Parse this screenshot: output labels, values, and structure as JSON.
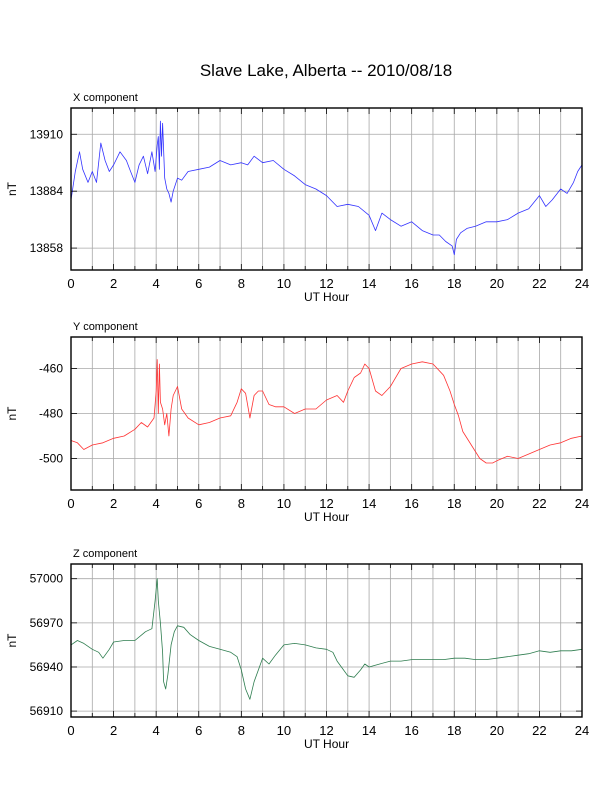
{
  "title": "Slave Lake, Alberta -- 2010/08/18",
  "colors": {
    "x": "#3333ff",
    "y": "#ff3333",
    "z": "#2e7d4f",
    "grid": "#a8a8a8",
    "frame": "#000000"
  },
  "chart_data": [
    {
      "type": "line",
      "panel_label": "X component",
      "xlabel": "UT Hour",
      "ylabel": "nT",
      "xlim": [
        0,
        24
      ],
      "ylim": [
        13848,
        13922
      ],
      "xticks": [
        "0",
        "2",
        "4",
        "6",
        "8",
        "10",
        "12",
        "14",
        "16",
        "18",
        "20",
        "22",
        "24"
      ],
      "yticks": [
        "13858",
        "13884",
        "13910"
      ],
      "ytick_values": [
        13858,
        13884,
        13910
      ],
      "grid": true,
      "series": [
        {
          "color": "#3333ff",
          "x": [
            0,
            0.2,
            0.4,
            0.55,
            0.8,
            1.0,
            1.2,
            1.4,
            1.6,
            1.8,
            2.0,
            2.3,
            2.6,
            2.8,
            3.0,
            3.2,
            3.4,
            3.6,
            3.8,
            3.95,
            4.05,
            4.1,
            4.15,
            4.2,
            4.25,
            4.3,
            4.4,
            4.5,
            4.6,
            4.7,
            4.8,
            5.0,
            5.2,
            5.5,
            6.0,
            6.5,
            7.0,
            7.5,
            8.0,
            8.3,
            8.6,
            9.0,
            9.5,
            10.0,
            10.5,
            11.0,
            11.5,
            12.0,
            12.5,
            13.0,
            13.5,
            14.0,
            14.3,
            14.6,
            15.0,
            15.5,
            16.0,
            16.5,
            17.0,
            17.3,
            17.6,
            17.9,
            18.0,
            18.1,
            18.3,
            18.6,
            19.0,
            19.5,
            20.0,
            20.5,
            21.0,
            21.5,
            22.0,
            22.3,
            22.6,
            23.0,
            23.3,
            23.6,
            23.8,
            24.0
          ],
          "y": [
            13880,
            13893,
            13902,
            13894,
            13888,
            13893,
            13888,
            13906,
            13898,
            13893,
            13896,
            13902,
            13898,
            13893,
            13888,
            13896,
            13900,
            13892,
            13902,
            13893,
            13905,
            13909,
            13894,
            13916,
            13900,
            13915,
            13890,
            13885,
            13883,
            13879,
            13884,
            13890,
            13889,
            13893,
            13894,
            13895,
            13898,
            13896,
            13897,
            13896,
            13900,
            13897,
            13898,
            13894,
            13891,
            13887,
            13885,
            13882,
            13877,
            13878,
            13877,
            13873,
            13866,
            13874,
            13871,
            13868,
            13870,
            13866,
            13864,
            13864,
            13861,
            13859,
            13855,
            13862,
            13865,
            13867,
            13868,
            13870,
            13870,
            13871,
            13874,
            13876,
            13882,
            13877,
            13880,
            13885,
            13883,
            13888,
            13893,
            13896
          ]
        }
      ]
    },
    {
      "type": "line",
      "panel_label": "Y component",
      "xlabel": "UT Hour",
      "ylabel": "nT",
      "xlim": [
        0,
        24
      ],
      "ylim": [
        -514,
        -446
      ],
      "xticks": [
        "0",
        "2",
        "4",
        "6",
        "8",
        "10",
        "12",
        "14",
        "16",
        "18",
        "20",
        "22",
        "24"
      ],
      "yticks": [
        "-460",
        "-480",
        "-500"
      ],
      "ytick_values": [
        -460,
        -480,
        -500
      ],
      "grid": true,
      "series": [
        {
          "color": "#ff3333",
          "x": [
            0,
            0.3,
            0.6,
            1.0,
            1.5,
            2.0,
            2.5,
            3.0,
            3.3,
            3.6,
            3.9,
            4.0,
            4.05,
            4.1,
            4.15,
            4.2,
            4.3,
            4.4,
            4.5,
            4.6,
            4.7,
            4.8,
            5.0,
            5.2,
            5.5,
            6.0,
            6.5,
            7.0,
            7.5,
            7.8,
            8.0,
            8.2,
            8.4,
            8.6,
            8.8,
            9.0,
            9.3,
            9.6,
            10.0,
            10.5,
            11.0,
            11.5,
            12.0,
            12.5,
            12.8,
            13.0,
            13.3,
            13.6,
            13.8,
            14.0,
            14.3,
            14.6,
            15.0,
            15.5,
            16.0,
            16.5,
            17.0,
            17.5,
            17.8,
            18.0,
            18.2,
            18.4,
            18.8,
            19.2,
            19.5,
            19.8,
            20.0,
            20.5,
            21.0,
            21.5,
            22.0,
            22.5,
            23.0,
            23.5,
            24.0
          ],
          "y": [
            -492,
            -493,
            -496,
            -494,
            -493,
            -491,
            -490,
            -487,
            -484,
            -486,
            -482,
            -470,
            -456,
            -480,
            -458,
            -475,
            -478,
            -485,
            -480,
            -490,
            -478,
            -472,
            -468,
            -478,
            -482,
            -485,
            -484,
            -482,
            -481,
            -475,
            -469,
            -471,
            -482,
            -472,
            -470,
            -470,
            -476,
            -477,
            -477,
            -480,
            -478,
            -478,
            -474,
            -472,
            -475,
            -470,
            -464,
            -462,
            -458,
            -460,
            -470,
            -472,
            -468,
            -460,
            -458,
            -457,
            -458,
            -463,
            -470,
            -476,
            -481,
            -488,
            -494,
            -500,
            -502,
            -502,
            -501,
            -499,
            -500,
            -498,
            -496,
            -494,
            -493,
            -491,
            -490
          ]
        }
      ]
    },
    {
      "type": "line",
      "panel_label": "Z component",
      "xlabel": "UT Hour",
      "ylabel": "nT",
      "xlim": [
        0,
        24
      ],
      "ylim": [
        56906,
        57010
      ],
      "xticks": [
        "0",
        "2",
        "4",
        "6",
        "8",
        "10",
        "12",
        "14",
        "16",
        "18",
        "20",
        "22",
        "24"
      ],
      "yticks": [
        "56910",
        "56940",
        "56970",
        "57000"
      ],
      "ytick_values": [
        56910,
        56940,
        56970,
        57000
      ],
      "grid": true,
      "series": [
        {
          "color": "#2e7d4f",
          "x": [
            0,
            0.3,
            0.6,
            1.0,
            1.3,
            1.5,
            1.8,
            2.0,
            2.5,
            3.0,
            3.5,
            3.8,
            3.95,
            4.05,
            4.1,
            4.2,
            4.3,
            4.35,
            4.45,
            4.55,
            4.7,
            4.85,
            5.0,
            5.3,
            5.6,
            6.0,
            6.5,
            7.0,
            7.5,
            7.8,
            8.0,
            8.2,
            8.4,
            8.6,
            8.8,
            9.0,
            9.3,
            9.6,
            10.0,
            10.5,
            11.0,
            11.5,
            12.0,
            12.3,
            12.5,
            12.8,
            13.0,
            13.3,
            13.6,
            13.8,
            14.0,
            14.5,
            15.0,
            15.5,
            16.0,
            16.5,
            17.0,
            17.5,
            18.0,
            18.5,
            19.0,
            19.5,
            20.0,
            20.5,
            21.0,
            21.5,
            22.0,
            22.5,
            23.0,
            23.5,
            24.0
          ],
          "y": [
            56955,
            56958,
            56956,
            56952,
            56950,
            56946,
            56952,
            56957,
            56958,
            56958,
            56964,
            56966,
            56985,
            57000,
            56985,
            56970,
            56950,
            56930,
            56925,
            56935,
            56955,
            56964,
            56968,
            56967,
            56962,
            56958,
            56954,
            56952,
            56950,
            56947,
            56938,
            56925,
            56918,
            56930,
            56938,
            56946,
            56942,
            56948,
            56955,
            56956,
            56955,
            56953,
            56952,
            56950,
            56944,
            56938,
            56934,
            56933,
            56938,
            56942,
            56940,
            56942,
            56944,
            56944,
            56945,
            56945,
            56945,
            56945,
            56946,
            56946,
            56945,
            56945,
            56946,
            56947,
            56948,
            56949,
            56951,
            56950,
            56951,
            56951,
            56952
          ]
        }
      ]
    }
  ]
}
